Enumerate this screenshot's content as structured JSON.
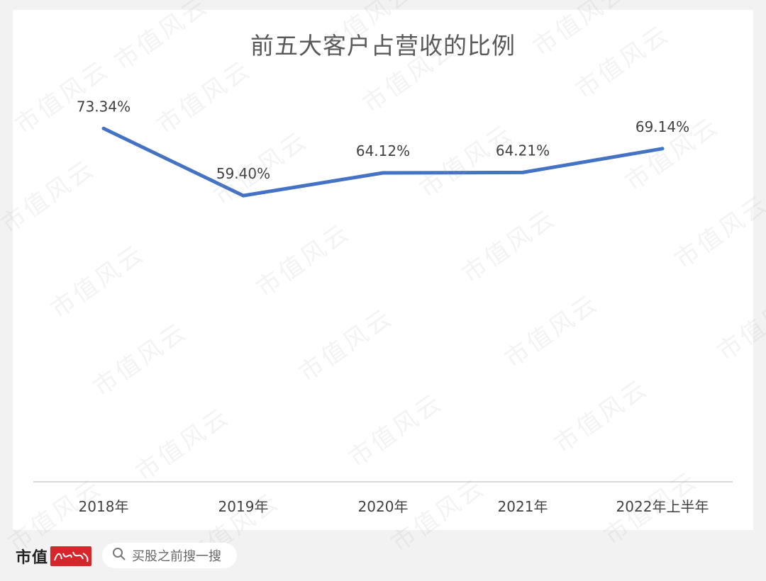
{
  "chart_data": {
    "type": "line",
    "title": "前五大客户占营收的比例",
    "categories": [
      "2018年",
      "2019年",
      "2020年",
      "2021年",
      "2022年上半年"
    ],
    "values": [
      73.34,
      59.4,
      64.12,
      64.21,
      69.14
    ],
    "data_labels": [
      "73.34%",
      "59.40%",
      "64.12%",
      "64.21%",
      "69.14%"
    ],
    "ylim": [
      0,
      100
    ],
    "line_color": "#4472c4",
    "axis_color": "#d9d9d9",
    "grid": false,
    "legend": "none"
  },
  "watermark": {
    "text": "市值风云"
  },
  "footer": {
    "brand": "市值",
    "search_placeholder": "买股之前搜一搜"
  }
}
